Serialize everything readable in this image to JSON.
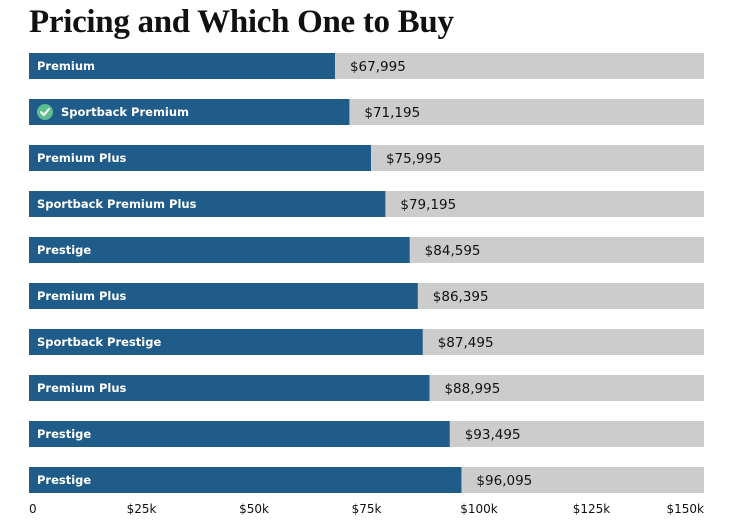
{
  "title": "Pricing and Which One to Buy",
  "colors": {
    "bar": "#1f5c89",
    "track": "#cccccc",
    "check": "#5cbd8f"
  },
  "chart_data": {
    "type": "bar",
    "orientation": "horizontal",
    "title": "Pricing and Which One to Buy",
    "xlim": [
      0,
      150000
    ],
    "x_ticks": [
      0,
      25000,
      50000,
      75000,
      100000,
      125000,
      150000
    ],
    "x_tick_labels": [
      "0",
      "$25k",
      "$50k",
      "$75k",
      "$100k",
      "$125k",
      "$150k"
    ],
    "categories": [
      "Premium",
      "Sportback Premium",
      "Premium Plus",
      "Sportback Premium Plus",
      "Prestige",
      "Premium Plus",
      "Sportback Prestige",
      "Premium Plus",
      "Prestige",
      "Prestige"
    ],
    "values": [
      67995,
      71195,
      75995,
      79195,
      84595,
      86395,
      87495,
      88995,
      93495,
      96095
    ],
    "value_labels": [
      "$67,995",
      "$71,195",
      "$75,995",
      "$79,195",
      "$84,595",
      "$86,395",
      "$87,495",
      "$88,995",
      "$93,495",
      "$96,095"
    ],
    "recommended_index": 1,
    "recommended_icon": "check-circle-icon",
    "grid": false,
    "legend": "none"
  }
}
